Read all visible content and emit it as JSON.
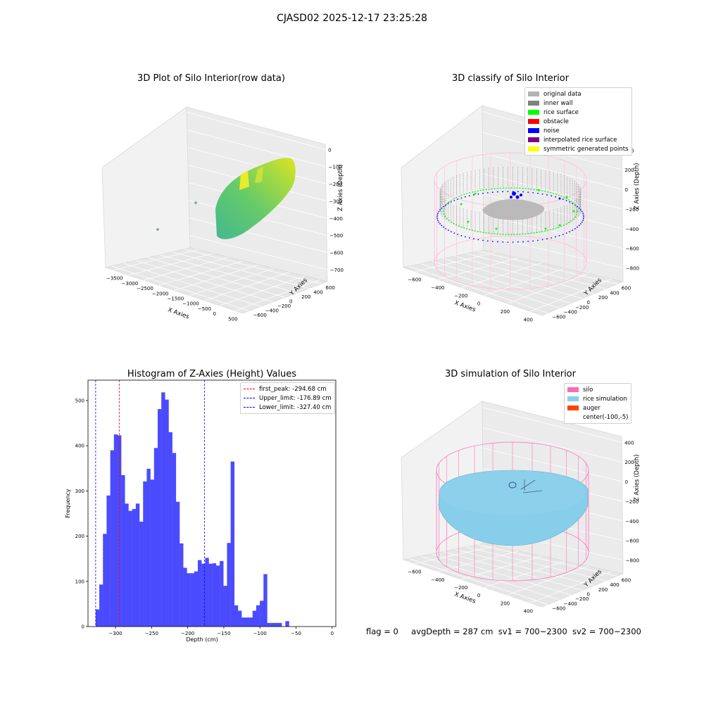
{
  "suptitle": "CJASD02 2025-12-17 23:25:28",
  "chart_data": [
    {
      "type": "scatter",
      "projection": "3d",
      "title": "3D Plot of Silo Interior(row data)",
      "xlabel": "X Axies",
      "ylabel": "Y Axies",
      "zlabel": "Z Axies (Depth)",
      "x_ticks": [
        "−3500",
        "−3000",
        "−2500",
        "−2000",
        "−1500",
        "−1000",
        "−500",
        "0",
        "500"
      ],
      "y_ticks": [
        "−600",
        "−400",
        "−200",
        "0",
        "200",
        "400",
        "600"
      ],
      "z_ticks": [
        "0",
        "−100",
        "−200",
        "−300",
        "−400",
        "−500",
        "−600",
        "−700"
      ],
      "grid": true,
      "colormap": "viridis"
    },
    {
      "type": "scatter",
      "projection": "3d",
      "title": "3D classify of Silo Interior",
      "xlabel": "X Axies",
      "ylabel": "Y Axies",
      "zlabel": "Z Axies (Depth)",
      "x_ticks": [
        "−600",
        "−400",
        "−200",
        "0",
        "200",
        "400"
      ],
      "y_ticks": [
        "−600",
        "−400",
        "−200",
        "0",
        "200",
        "400",
        "600"
      ],
      "z_ticks": [
        "400",
        "200",
        "0",
        "−200",
        "−400",
        "−600",
        "−800"
      ],
      "legend_position": "top-right",
      "legend": [
        {
          "label": "original data",
          "color": "#b3b3b3"
        },
        {
          "label": "inner wall",
          "color": "#808080"
        },
        {
          "label": "rice surface",
          "color": "#00ff00"
        },
        {
          "label": "obstacle",
          "color": "#ff0000"
        },
        {
          "label": "noise",
          "color": "#0000ff"
        },
        {
          "label": "interpolated rice surface",
          "color": "#800080"
        },
        {
          "label": "symmetric generated points",
          "color": "#ffff00"
        }
      ]
    },
    {
      "type": "bar",
      "title": "Histogram of Z-Axies (Height) Values",
      "xlabel": "Depth (cm)",
      "ylabel": "Frequency",
      "xlim": [
        -338,
        5
      ],
      "ylim": [
        0,
        545
      ],
      "x_ticks": [
        -300,
        -250,
        -200,
        -150,
        -100,
        -50,
        0
      ],
      "y_ticks": [
        0,
        100,
        200,
        300,
        400,
        500
      ],
      "bar_color": "#4b4bfe",
      "bin_width": 5.05,
      "bin_start": -327.4,
      "values": [
        38,
        93,
        205,
        290,
        390,
        425,
        423,
        335,
        272,
        256,
        260,
        272,
        232,
        321,
        349,
        325,
        395,
        481,
        518,
        502,
        430,
        384,
        276,
        184,
        130,
        118,
        118,
        122,
        147,
        139,
        152,
        139,
        140,
        135,
        145,
        90,
        185,
        365,
        47,
        35,
        20,
        20,
        20,
        35,
        47,
        57,
        116,
        8,
        8,
        8,
        8,
        0,
        12
      ],
      "lines": [
        {
          "label": "first_peak: -294.68 cm",
          "x": -294.68,
          "color": "#ff0000"
        },
        {
          "label": "Upper_limit: -176.89 cm",
          "x": -176.89,
          "color": "#0000ff"
        },
        {
          "label": "Lower_limit: -327.40 cm",
          "x": -327.4,
          "color": "#0000ff"
        }
      ],
      "legend_position": "top-right"
    },
    {
      "type": "scatter",
      "projection": "3d",
      "title": "3D simulation of Silo Interior",
      "xlabel": "X Axies",
      "ylabel": "Y Axies",
      "zlabel": "Z Axies (Depth)",
      "x_ticks": [
        "−600",
        "−400",
        "−200",
        "0",
        "200",
        "400"
      ],
      "y_ticks": [
        "−600",
        "−400",
        "−200",
        "0",
        "200",
        "400",
        "600"
      ],
      "z_ticks": [
        "400",
        "200",
        "0",
        "−200",
        "−400",
        "−600",
        "−800"
      ],
      "legend_position": "top-right",
      "legend": [
        {
          "label": "silo",
          "color": "#ff69b4"
        },
        {
          "label": "rice simulation",
          "color": "#87ceeb"
        },
        {
          "label": "auger",
          "color": "#ff4500"
        },
        {
          "label": "center(-100,-5)",
          "color": "transparent"
        }
      ]
    }
  ],
  "status": {
    "flag": "flag = 0",
    "avg": "avgDepth = 287 cm",
    "sv1": "sv1 = 700~2300",
    "sv2": "sv2 = 700~2300"
  }
}
